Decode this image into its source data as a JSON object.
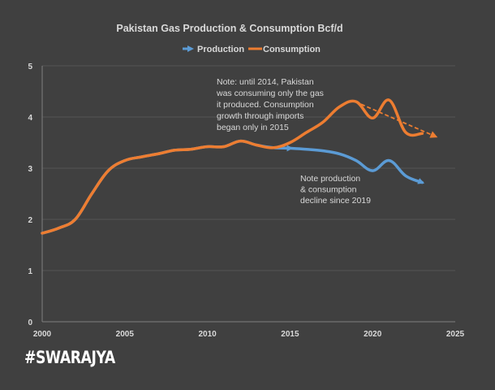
{
  "chart_data": {
    "type": "line",
    "title": "Pakistan Gas Production & Consumption Bcf/d",
    "xlabel": "",
    "ylabel": "",
    "xlim": [
      2000,
      2025
    ],
    "ylim": [
      0,
      5
    ],
    "x_ticks": [
      "2000",
      "2005",
      "2010",
      "2015",
      "2020",
      "2025"
    ],
    "y_ticks": [
      "0",
      "1",
      "2",
      "3",
      "4",
      "5"
    ],
    "grid": true,
    "legend_position": "top-center",
    "series": [
      {
        "name": "Production",
        "color": "#5b9bd5",
        "x": [
          2000,
          2001,
          2002,
          2003,
          2004,
          2005,
          2006,
          2007,
          2008,
          2009,
          2010,
          2011,
          2012,
          2013,
          2014,
          2015,
          2016,
          2017,
          2018,
          2019,
          2020,
          2021,
          2022,
          2023
        ],
        "values": [
          1.73,
          1.83,
          2.0,
          2.5,
          2.95,
          3.15,
          3.22,
          3.28,
          3.35,
          3.37,
          3.42,
          3.42,
          3.53,
          3.45,
          3.4,
          3.39,
          3.37,
          3.34,
          3.28,
          3.15,
          2.95,
          3.15,
          2.85,
          2.72
        ],
        "end_arrow": true
      },
      {
        "name": "Consumption",
        "color": "#ed7d31",
        "x": [
          2000,
          2001,
          2002,
          2003,
          2004,
          2005,
          2006,
          2007,
          2008,
          2009,
          2010,
          2011,
          2012,
          2013,
          2014,
          2015,
          2016,
          2017,
          2018,
          2019,
          2020,
          2021,
          2022,
          2023
        ],
        "values": [
          1.73,
          1.83,
          2.0,
          2.5,
          2.95,
          3.15,
          3.22,
          3.28,
          3.35,
          3.37,
          3.42,
          3.42,
          3.53,
          3.45,
          3.4,
          3.5,
          3.7,
          3.9,
          4.2,
          4.3,
          3.98,
          4.33,
          3.7,
          3.68
        ],
        "end_arrow": false
      }
    ],
    "trend_arrow": {
      "description": "dashed consumption decline trend",
      "color": "#ed7d31",
      "from": [
        2019.3,
        4.25
      ],
      "to": [
        2023.8,
        3.62
      ]
    },
    "annotations": [
      {
        "id": "note-imports",
        "lines": [
          "Note: until 2014, Pakistan",
          "was consuming only the gas",
          "it produced.  Consumption",
          "growth through imports",
          "began only in 2015"
        ]
      },
      {
        "id": "note-decline",
        "lines": [
          "Note production",
          "& consumption",
          "decline since 2019"
        ]
      }
    ]
  },
  "brand": "#SWARAJYA"
}
